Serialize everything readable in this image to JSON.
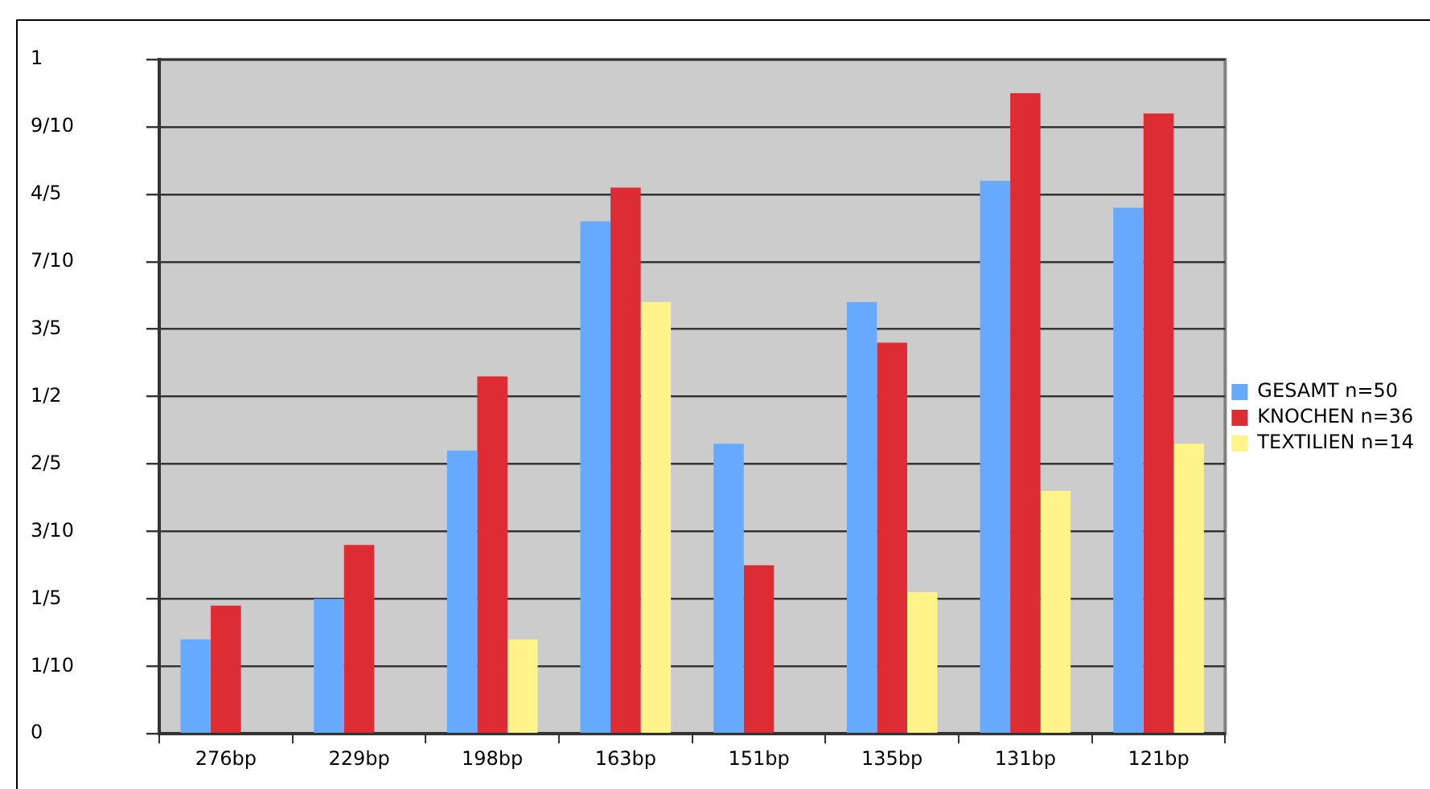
{
  "chart_data": {
    "type": "bar",
    "categories": [
      "276bp",
      "229bp",
      "198bp",
      "163bp",
      "151bp",
      "135bp",
      "131bp",
      "121bp"
    ],
    "series": [
      {
        "name": "GESAMT n=50",
        "color": "#66aaff",
        "values": [
          0.14,
          0.2,
          0.42,
          0.76,
          0.43,
          0.64,
          0.82,
          0.78
        ]
      },
      {
        "name": "KNOCHEN n=36",
        "color": "#dd2c33",
        "values": [
          0.19,
          0.28,
          0.53,
          0.81,
          0.25,
          0.58,
          0.95,
          0.92
        ]
      },
      {
        "name": "TEXTILIEN n=14",
        "color": "#fff38a",
        "values": [
          null,
          null,
          0.14,
          0.64,
          null,
          0.21,
          0.36,
          0.43
        ]
      }
    ],
    "ylim": [
      0,
      1
    ],
    "yticks": [
      0,
      {
        "value": 0.1,
        "label": "1/10"
      },
      {
        "value": 0.2,
        "label": "1/5"
      },
      {
        "value": 0.3,
        "label": "3/10"
      },
      {
        "value": 0.4,
        "label": "2/5"
      },
      {
        "value": 0.5,
        "label": "1/2"
      },
      {
        "value": 0.6,
        "label": "3/5"
      },
      {
        "value": 0.7,
        "label": "7/10"
      },
      {
        "value": 0.8,
        "label": "4/5"
      },
      {
        "value": 0.9,
        "label": "9/10"
      },
      1
    ],
    "grid": "y",
    "legend": "right"
  }
}
